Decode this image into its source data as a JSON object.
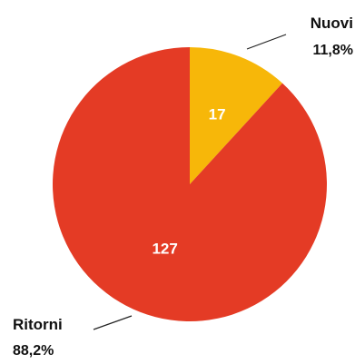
{
  "chart_data": {
    "type": "pie",
    "slices": [
      {
        "label": "Nuovi",
        "value": 17,
        "value_label": "17",
        "percent_label": "11,8%",
        "color": "#f7b709"
      },
      {
        "label": "Ritorni",
        "value": 127,
        "value_label": "127",
        "percent_label": "88,2%",
        "color": "#e43b25"
      }
    ],
    "start_angle_deg": 0,
    "direction": "clockwise"
  }
}
